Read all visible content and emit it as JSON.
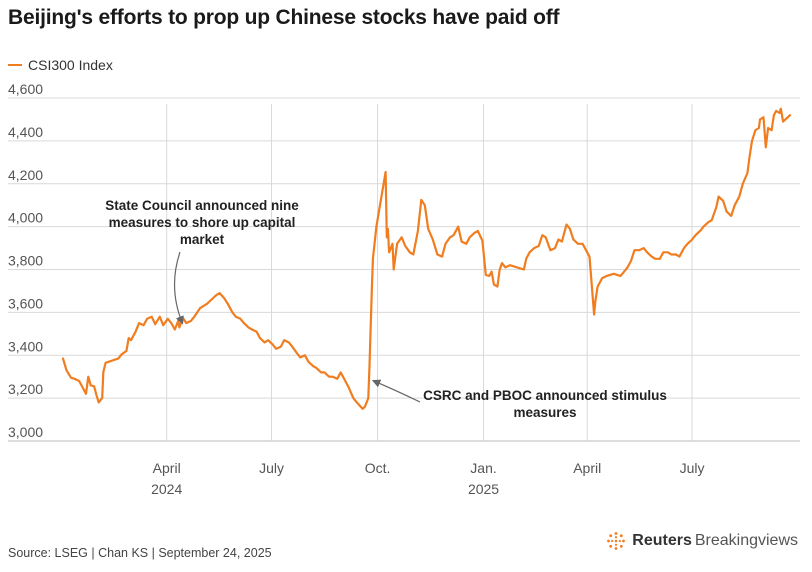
{
  "header": {
    "title": "Beijing's efforts to prop up Chinese stocks have paid off"
  },
  "footer": {
    "source": "Source: LSEG | Chan KS | September 24, 2025",
    "brand_bold": "Reuters",
    "brand_light": "Breakingviews"
  },
  "colors": {
    "series": "#f07d1f",
    "grid": "#d9d9d9",
    "axis_text": "#555555",
    "annotation": "#222222"
  },
  "chart_data": {
    "type": "line",
    "title": "Beijing's efforts to prop up Chinese stocks have paid off",
    "xlabel": "",
    "ylabel": "",
    "ylim": [
      3000,
      4600
    ],
    "yticks": [
      3000,
      3200,
      3400,
      3600,
      3800,
      4000,
      4200,
      4400,
      4600
    ],
    "ytick_labels": [
      "3,000",
      "3,200",
      "3,400",
      "3,600",
      "3,800",
      "4,000",
      "4,200",
      "4,400",
      "4,600"
    ],
    "xlim": [
      "2024-01-02",
      "2025-09-24"
    ],
    "xticks": [
      {
        "date": "2024-04-01",
        "label": "April",
        "sub": "2024"
      },
      {
        "date": "2024-07-01",
        "label": "July",
        "sub": ""
      },
      {
        "date": "2024-10-01",
        "label": "Oct.",
        "sub": ""
      },
      {
        "date": "2025-01-01",
        "label": "Jan.",
        "sub": "2025"
      },
      {
        "date": "2025-04-01",
        "label": "April",
        "sub": ""
      },
      {
        "date": "2025-07-01",
        "label": "July",
        "sub": ""
      }
    ],
    "grid": true,
    "legend": "top-left",
    "series": [
      {
        "name": "CSI300 Index",
        "points": [
          [
            "2024-01-02",
            3385
          ],
          [
            "2024-01-05",
            3330
          ],
          [
            "2024-01-09",
            3295
          ],
          [
            "2024-01-12",
            3290
          ],
          [
            "2024-01-16",
            3280
          ],
          [
            "2024-01-19",
            3250
          ],
          [
            "2024-01-22",
            3220
          ],
          [
            "2024-01-24",
            3300
          ],
          [
            "2024-01-26",
            3260
          ],
          [
            "2024-01-29",
            3255
          ],
          [
            "2024-01-31",
            3215
          ],
          [
            "2024-02-02",
            3180
          ],
          [
            "2024-02-05",
            3200
          ],
          [
            "2024-02-06",
            3320
          ],
          [
            "2024-02-08",
            3365
          ],
          [
            "2024-02-19",
            3385
          ],
          [
            "2024-02-22",
            3405
          ],
          [
            "2024-02-26",
            3420
          ],
          [
            "2024-02-28",
            3480
          ],
          [
            "2024-03-01",
            3470
          ],
          [
            "2024-03-05",
            3510
          ],
          [
            "2024-03-08",
            3550
          ],
          [
            "2024-03-12",
            3540
          ],
          [
            "2024-03-15",
            3570
          ],
          [
            "2024-03-19",
            3580
          ],
          [
            "2024-03-22",
            3545
          ],
          [
            "2024-03-26",
            3580
          ],
          [
            "2024-03-29",
            3540
          ],
          [
            "2024-04-02",
            3570
          ],
          [
            "2024-04-05",
            3550
          ],
          [
            "2024-04-08",
            3520
          ],
          [
            "2024-04-11",
            3560
          ],
          [
            "2024-04-12",
            3530
          ],
          [
            "2024-04-15",
            3575
          ],
          [
            "2024-04-18",
            3550
          ],
          [
            "2024-04-22",
            3560
          ],
          [
            "2024-04-25",
            3580
          ],
          [
            "2024-04-30",
            3620
          ],
          [
            "2024-05-06",
            3640
          ],
          [
            "2024-05-10",
            3660
          ],
          [
            "2024-05-14",
            3680
          ],
          [
            "2024-05-17",
            3690
          ],
          [
            "2024-05-21",
            3665
          ],
          [
            "2024-05-24",
            3640
          ],
          [
            "2024-05-28",
            3600
          ],
          [
            "2024-05-31",
            3580
          ],
          [
            "2024-06-04",
            3570
          ],
          [
            "2024-06-07",
            3550
          ],
          [
            "2024-06-11",
            3530
          ],
          [
            "2024-06-14",
            3520
          ],
          [
            "2024-06-18",
            3510
          ],
          [
            "2024-06-21",
            3480
          ],
          [
            "2024-06-25",
            3460
          ],
          [
            "2024-06-28",
            3470
          ],
          [
            "2024-07-02",
            3450
          ],
          [
            "2024-07-05",
            3430
          ],
          [
            "2024-07-09",
            3440
          ],
          [
            "2024-07-12",
            3470
          ],
          [
            "2024-07-16",
            3460
          ],
          [
            "2024-07-19",
            3440
          ],
          [
            "2024-07-23",
            3410
          ],
          [
            "2024-07-26",
            3390
          ],
          [
            "2024-07-30",
            3400
          ],
          [
            "2024-08-02",
            3370
          ],
          [
            "2024-08-06",
            3350
          ],
          [
            "2024-08-09",
            3340
          ],
          [
            "2024-08-13",
            3320
          ],
          [
            "2024-08-16",
            3320
          ],
          [
            "2024-08-20",
            3300
          ],
          [
            "2024-08-23",
            3300
          ],
          [
            "2024-08-27",
            3290
          ],
          [
            "2024-08-30",
            3320
          ],
          [
            "2024-09-03",
            3280
          ],
          [
            "2024-09-06",
            3250
          ],
          [
            "2024-09-10",
            3200
          ],
          [
            "2024-09-13",
            3180
          ],
          [
            "2024-09-18",
            3150
          ],
          [
            "2024-09-20",
            3160
          ],
          [
            "2024-09-23",
            3200
          ],
          [
            "2024-09-24",
            3350
          ],
          [
            "2024-09-25",
            3520
          ],
          [
            "2024-09-26",
            3700
          ],
          [
            "2024-09-27",
            3850
          ],
          [
            "2024-09-30",
            4000
          ],
          [
            "2024-10-08",
            4255
          ],
          [
            "2024-10-09",
            3950
          ],
          [
            "2024-10-10",
            3990
          ],
          [
            "2024-10-11",
            3880
          ],
          [
            "2024-10-14",
            3920
          ],
          [
            "2024-10-15",
            3800
          ],
          [
            "2024-10-18",
            3920
          ],
          [
            "2024-10-22",
            3950
          ],
          [
            "2024-10-25",
            3910
          ],
          [
            "2024-10-29",
            3880
          ],
          [
            "2024-11-01",
            3870
          ],
          [
            "2024-11-05",
            3980
          ],
          [
            "2024-11-08",
            4125
          ],
          [
            "2024-11-11",
            4100
          ],
          [
            "2024-11-14",
            3990
          ],
          [
            "2024-11-18",
            3940
          ],
          [
            "2024-11-22",
            3870
          ],
          [
            "2024-11-26",
            3860
          ],
          [
            "2024-11-29",
            3920
          ],
          [
            "2024-12-03",
            3950
          ],
          [
            "2024-12-06",
            3960
          ],
          [
            "2024-12-10",
            4000
          ],
          [
            "2024-12-13",
            3930
          ],
          [
            "2024-12-17",
            3920
          ],
          [
            "2024-12-20",
            3950
          ],
          [
            "2024-12-24",
            3970
          ],
          [
            "2024-12-27",
            3980
          ],
          [
            "2024-12-31",
            3935
          ],
          [
            "2025-01-03",
            3775
          ],
          [
            "2025-01-06",
            3770
          ],
          [
            "2025-01-08",
            3790
          ],
          [
            "2025-01-10",
            3730
          ],
          [
            "2025-01-13",
            3720
          ],
          [
            "2025-01-15",
            3800
          ],
          [
            "2025-01-17",
            3830
          ],
          [
            "2025-01-20",
            3810
          ],
          [
            "2025-01-24",
            3820
          ],
          [
            "2025-01-27",
            3815
          ],
          [
            "2025-02-05",
            3800
          ],
          [
            "2025-02-07",
            3850
          ],
          [
            "2025-02-10",
            3880
          ],
          [
            "2025-02-14",
            3900
          ],
          [
            "2025-02-18",
            3910
          ],
          [
            "2025-02-21",
            3960
          ],
          [
            "2025-02-24",
            3950
          ],
          [
            "2025-02-28",
            3890
          ],
          [
            "2025-03-04",
            3900
          ],
          [
            "2025-03-07",
            3940
          ],
          [
            "2025-03-10",
            3930
          ],
          [
            "2025-03-14",
            4010
          ],
          [
            "2025-03-17",
            3990
          ],
          [
            "2025-03-20",
            3940
          ],
          [
            "2025-03-24",
            3920
          ],
          [
            "2025-03-28",
            3920
          ],
          [
            "2025-04-03",
            3860
          ],
          [
            "2025-04-07",
            3590
          ],
          [
            "2025-04-08",
            3650
          ],
          [
            "2025-04-10",
            3720
          ],
          [
            "2025-04-14",
            3760
          ],
          [
            "2025-04-18",
            3770
          ],
          [
            "2025-04-24",
            3780
          ],
          [
            "2025-04-30",
            3770
          ],
          [
            "2025-05-06",
            3810
          ],
          [
            "2025-05-09",
            3840
          ],
          [
            "2025-05-12",
            3890
          ],
          [
            "2025-05-16",
            3890
          ],
          [
            "2025-05-20",
            3900
          ],
          [
            "2025-05-23",
            3880
          ],
          [
            "2025-05-27",
            3860
          ],
          [
            "2025-05-30",
            3850
          ],
          [
            "2025-06-03",
            3850
          ],
          [
            "2025-06-06",
            3880
          ],
          [
            "2025-06-10",
            3880
          ],
          [
            "2025-06-13",
            3870
          ],
          [
            "2025-06-17",
            3870
          ],
          [
            "2025-06-20",
            3860
          ],
          [
            "2025-06-24",
            3900
          ],
          [
            "2025-06-27",
            3920
          ],
          [
            "2025-07-01",
            3940
          ],
          [
            "2025-07-04",
            3960
          ],
          [
            "2025-07-08",
            3980
          ],
          [
            "2025-07-11",
            4000
          ],
          [
            "2025-07-15",
            4020
          ],
          [
            "2025-07-18",
            4030
          ],
          [
            "2025-07-22",
            4090
          ],
          [
            "2025-07-24",
            4140
          ],
          [
            "2025-07-28",
            4120
          ],
          [
            "2025-07-31",
            4070
          ],
          [
            "2025-08-04",
            4050
          ],
          [
            "2025-08-07",
            4100
          ],
          [
            "2025-08-11",
            4140
          ],
          [
            "2025-08-14",
            4200
          ],
          [
            "2025-08-18",
            4250
          ],
          [
            "2025-08-20",
            4330
          ],
          [
            "2025-08-22",
            4400
          ],
          [
            "2025-08-25",
            4450
          ],
          [
            "2025-08-28",
            4460
          ],
          [
            "2025-08-29",
            4500
          ],
          [
            "2025-09-01",
            4510
          ],
          [
            "2025-09-03",
            4370
          ],
          [
            "2025-09-05",
            4460
          ],
          [
            "2025-09-08",
            4450
          ],
          [
            "2025-09-10",
            4520
          ],
          [
            "2025-09-12",
            4540
          ],
          [
            "2025-09-15",
            4530
          ],
          [
            "2025-09-16",
            4550
          ],
          [
            "2025-09-18",
            4490
          ],
          [
            "2025-09-22",
            4510
          ],
          [
            "2025-09-24",
            4520
          ]
        ]
      }
    ],
    "annotations": [
      {
        "id": "state-council",
        "lines": [
          "State Council announced nine",
          "measures to shore up capital",
          "market"
        ],
        "date": "2024-04-12",
        "value": 3555
      },
      {
        "id": "csrc-pboc",
        "lines": [
          "CSRC and PBOC announced stimulus",
          "measures"
        ],
        "date": "2024-09-24",
        "value": 3290
      }
    ]
  }
}
